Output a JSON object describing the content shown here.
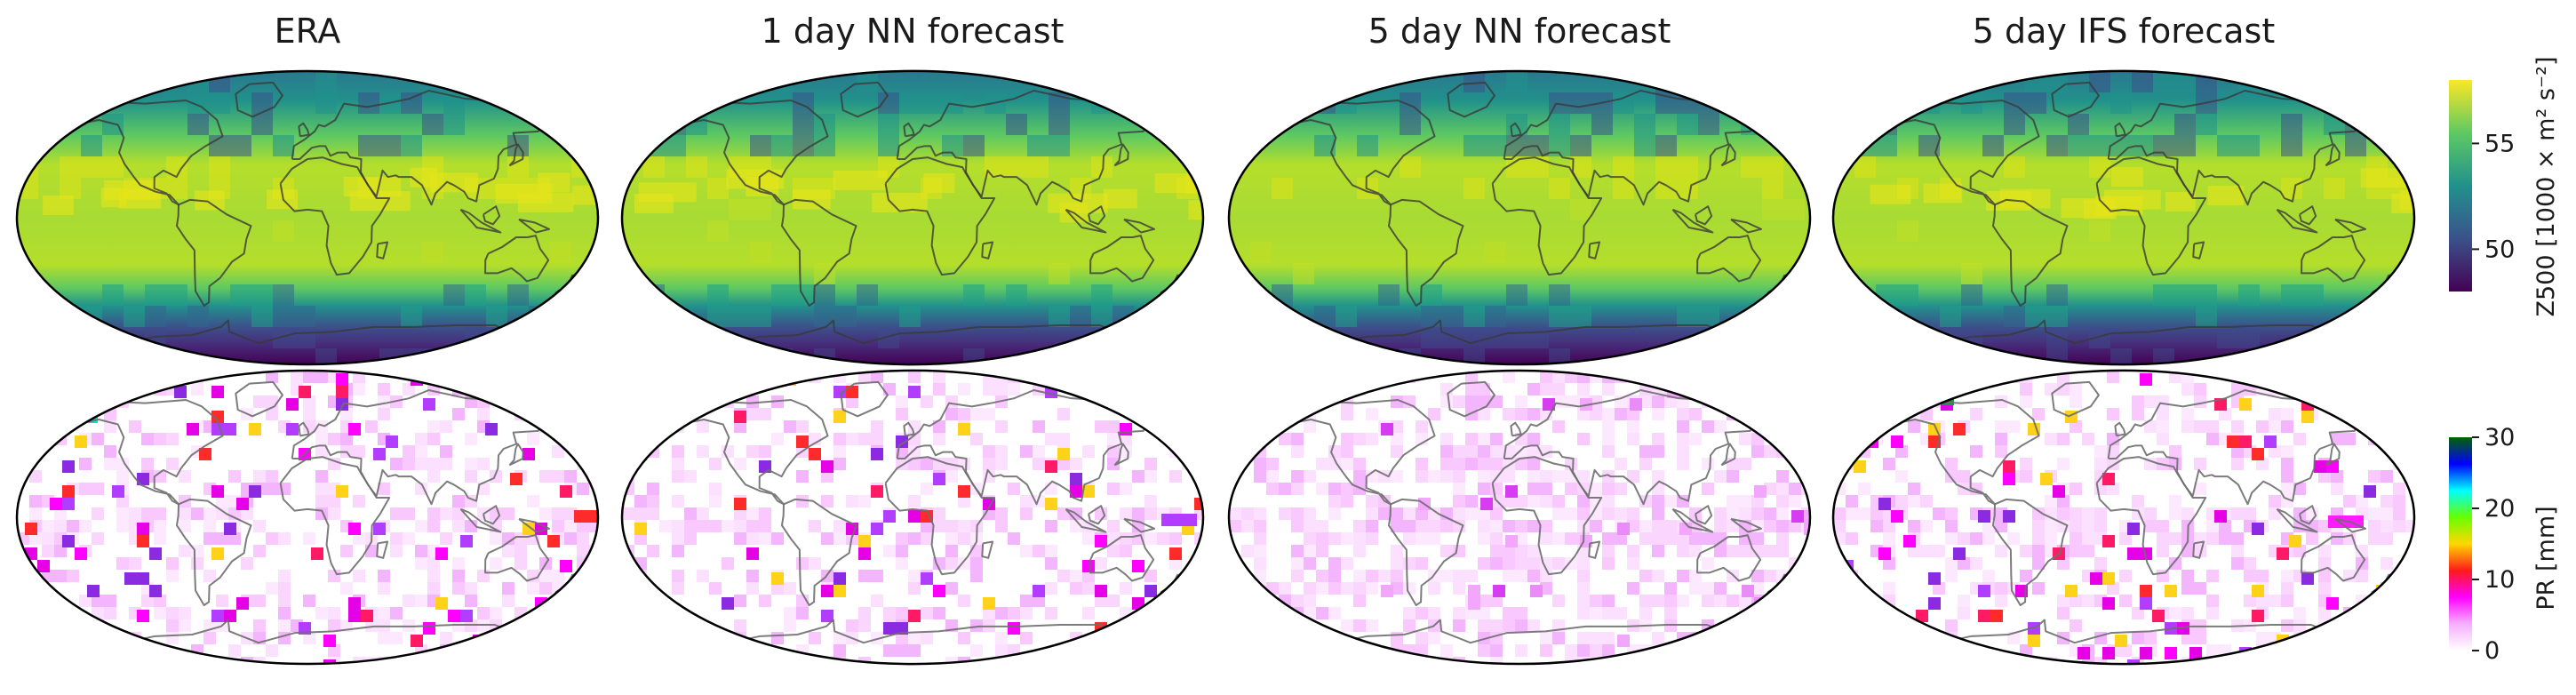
{
  "chart_data": {
    "type": "heatmap",
    "projection": "Robinson (global)",
    "panels_per_row": [
      "ERA",
      "1 day NN forecast",
      "5 day NN forecast",
      "5 day IFS forecast"
    ],
    "rows": [
      {
        "variable": "Z500",
        "colorbar_label": "Z500 [1000 × m² s⁻²]",
        "colormap": "viridis",
        "colormap_stops": [
          "#440154",
          "#3b528b",
          "#21918c",
          "#5ec962",
          "#fde725"
        ],
        "vmin": 48,
        "vmax": 58,
        "ticks": [
          50,
          55
        ],
        "tick_labels": [
          "50",
          "55"
        ]
      },
      {
        "variable": "PR",
        "colorbar_label": "PR [mm]",
        "colormap": "precipitation",
        "colormap_stops": [
          "#ffffff",
          "#f5b0ff",
          "#ff00ff",
          "#ff1a1a",
          "#ffd700",
          "#66ff00",
          "#00ffff",
          "#0000ff",
          "#006400"
        ],
        "vmin": 0,
        "vmax": 30,
        "ticks": [
          0,
          10,
          20,
          30
        ],
        "tick_labels": [
          "0",
          "10",
          "20",
          "30"
        ]
      }
    ]
  }
}
